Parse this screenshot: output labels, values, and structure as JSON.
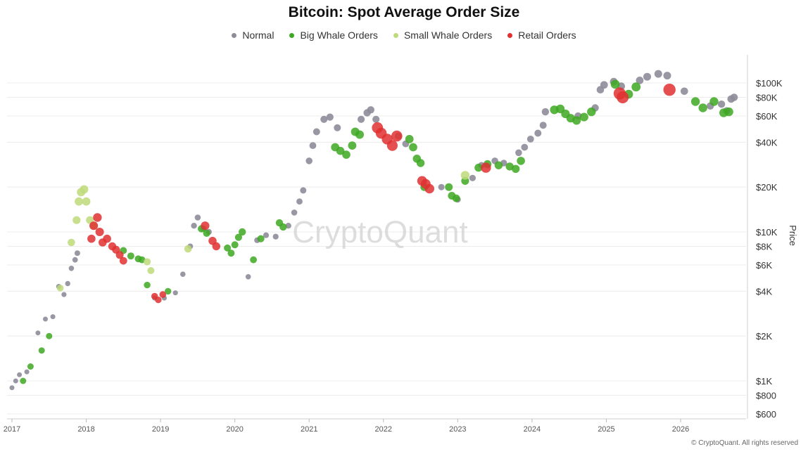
{
  "title": "Bitcoin: Spot Average Order Size",
  "watermark": "CryptoQuant",
  "credit": "© CryptoQuant. All rights reserved",
  "legend": [
    {
      "label": "Normal",
      "color": "#8e8c99"
    },
    {
      "label": "Big Whale Orders",
      "color": "#3ea822"
    },
    {
      "label": "Small Whale Orders",
      "color": "#bedb7a"
    },
    {
      "label": "Retail Orders",
      "color": "#e03030"
    }
  ],
  "chart_data": {
    "type": "scatter",
    "title": "Bitcoin: Spot Average Order Size",
    "xlabel": "",
    "ylabel": "Price",
    "y_scale": "log",
    "ylim": [
      600,
      160000
    ],
    "xlim": [
      2017.0,
      2026.95
    ],
    "grid": true,
    "legend_position": "top-center",
    "x_ticks": [
      "2017",
      "2018",
      "2019",
      "2020",
      "2021",
      "2022",
      "2023",
      "2024",
      "2025",
      "2026"
    ],
    "y_ticks": [
      {
        "value": 100000,
        "label": "$100K"
      },
      {
        "value": 80000,
        "label": "$80K"
      },
      {
        "value": 60000,
        "label": "$60K"
      },
      {
        "value": 40000,
        "label": "$40K"
      },
      {
        "value": 20000,
        "label": "$20K"
      },
      {
        "value": 10000,
        "label": "$10K"
      },
      {
        "value": 8000,
        "label": "$8K"
      },
      {
        "value": 6000,
        "label": "$6K"
      },
      {
        "value": 4000,
        "label": "$4K"
      },
      {
        "value": 2000,
        "label": "$2K"
      },
      {
        "value": 1000,
        "label": "$1K"
      },
      {
        "value": 800,
        "label": "$800"
      },
      {
        "value": 600,
        "label": "$600"
      }
    ],
    "series": [
      {
        "name": "Normal",
        "color": "#8e8c99",
        "points": [
          [
            2017.0,
            900
          ],
          [
            2017.05,
            1000
          ],
          [
            2017.1,
            1100
          ],
          [
            2017.2,
            1150
          ],
          [
            2017.35,
            2100
          ],
          [
            2017.45,
            2600
          ],
          [
            2017.55,
            2700
          ],
          [
            2017.63,
            4300
          ],
          [
            2017.7,
            3800
          ],
          [
            2017.75,
            4500
          ],
          [
            2017.8,
            5700
          ],
          [
            2017.85,
            6500
          ],
          [
            2017.88,
            7200
          ],
          [
            2018.92,
            3600
          ],
          [
            2019.05,
            3600
          ],
          [
            2019.2,
            3900
          ],
          [
            2019.3,
            5200
          ],
          [
            2019.4,
            8000
          ],
          [
            2019.45,
            11000
          ],
          [
            2019.5,
            12500
          ],
          [
            2019.58,
            10500
          ],
          [
            2019.65,
            10000
          ],
          [
            2020.18,
            5000
          ],
          [
            2020.3,
            8800
          ],
          [
            2020.42,
            9500
          ],
          [
            2020.55,
            9300
          ],
          [
            2020.72,
            11000
          ],
          [
            2020.8,
            13500
          ],
          [
            2020.87,
            16000
          ],
          [
            2020.92,
            19000
          ],
          [
            2021.0,
            30000
          ],
          [
            2021.05,
            38000
          ],
          [
            2021.1,
            47000
          ],
          [
            2021.2,
            57000
          ],
          [
            2021.28,
            59000
          ],
          [
            2021.38,
            50000
          ],
          [
            2021.7,
            57000
          ],
          [
            2021.78,
            63000
          ],
          [
            2021.83,
            66000
          ],
          [
            2021.9,
            57000
          ],
          [
            2022.2,
            44000
          ],
          [
            2022.3,
            39000
          ],
          [
            2022.78,
            20000
          ],
          [
            2023.0,
            16500
          ],
          [
            2023.2,
            23000
          ],
          [
            2023.32,
            28000
          ],
          [
            2023.5,
            30000
          ],
          [
            2023.62,
            29000
          ],
          [
            2023.82,
            34000
          ],
          [
            2023.9,
            37000
          ],
          [
            2023.98,
            42000
          ],
          [
            2024.08,
            46000
          ],
          [
            2024.15,
            52000
          ],
          [
            2024.18,
            64000
          ],
          [
            2024.62,
            60000
          ],
          [
            2024.85,
            68000
          ],
          [
            2024.92,
            90000
          ],
          [
            2024.97,
            97000
          ],
          [
            2025.1,
            102000
          ],
          [
            2025.2,
            95000
          ],
          [
            2025.45,
            104000
          ],
          [
            2025.55,
            110000
          ],
          [
            2025.7,
            115000
          ],
          [
            2025.82,
            112000
          ],
          [
            2026.05,
            88000
          ],
          [
            2026.4,
            70000
          ],
          [
            2026.55,
            72000
          ],
          [
            2026.62,
            65000
          ],
          [
            2026.68,
            78000
          ],
          [
            2026.72,
            80000
          ]
        ]
      },
      {
        "name": "Big Whale Orders",
        "color": "#3ea822",
        "points": [
          [
            2017.15,
            1000
          ],
          [
            2017.25,
            1250
          ],
          [
            2017.4,
            1600
          ],
          [
            2017.5,
            2000
          ],
          [
            2018.5,
            7500
          ],
          [
            2018.6,
            6900
          ],
          [
            2018.7,
            6600
          ],
          [
            2018.75,
            6500
          ],
          [
            2018.82,
            4400
          ],
          [
            2019.1,
            4000
          ],
          [
            2019.55,
            10500
          ],
          [
            2019.62,
            9800
          ],
          [
            2019.9,
            7800
          ],
          [
            2019.95,
            7200
          ],
          [
            2020.0,
            8200
          ],
          [
            2020.05,
            9200
          ],
          [
            2020.1,
            10000
          ],
          [
            2020.25,
            6500
          ],
          [
            2020.35,
            9000
          ],
          [
            2020.6,
            11500
          ],
          [
            2020.65,
            10800
          ],
          [
            2021.35,
            37000
          ],
          [
            2021.42,
            35000
          ],
          [
            2021.5,
            33000
          ],
          [
            2021.58,
            38000
          ],
          [
            2021.62,
            47000
          ],
          [
            2021.68,
            45000
          ],
          [
            2022.35,
            42000
          ],
          [
            2022.4,
            37000
          ],
          [
            2022.45,
            31000
          ],
          [
            2022.5,
            29000
          ],
          [
            2022.55,
            20000
          ],
          [
            2022.88,
            20000
          ],
          [
            2022.92,
            17500
          ],
          [
            2022.98,
            16800
          ],
          [
            2023.1,
            22000
          ],
          [
            2023.28,
            27000
          ],
          [
            2023.4,
            28500
          ],
          [
            2023.55,
            28000
          ],
          [
            2023.7,
            27500
          ],
          [
            2023.78,
            26500
          ],
          [
            2023.85,
            30000
          ],
          [
            2024.3,
            66000
          ],
          [
            2024.38,
            67000
          ],
          [
            2024.45,
            62000
          ],
          [
            2024.52,
            58000
          ],
          [
            2024.6,
            56000
          ],
          [
            2024.7,
            59000
          ],
          [
            2024.8,
            64000
          ],
          [
            2025.12,
            98000
          ],
          [
            2025.3,
            84000
          ],
          [
            2025.4,
            94000
          ],
          [
            2026.2,
            75000
          ],
          [
            2026.3,
            68000
          ],
          [
            2026.45,
            75000
          ],
          [
            2026.58,
            63000
          ],
          [
            2026.65,
            64000
          ]
        ]
      },
      {
        "name": "Small Whale Orders",
        "color": "#bedb7a",
        "points": [
          [
            2017.65,
            4200
          ],
          [
            2017.8,
            8500
          ],
          [
            2017.87,
            12000
          ],
          [
            2017.9,
            16000
          ],
          [
            2017.93,
            18500
          ],
          [
            2017.97,
            19300
          ],
          [
            2018.0,
            16000
          ],
          [
            2018.05,
            12000
          ],
          [
            2018.1,
            11000
          ],
          [
            2018.82,
            6300
          ],
          [
            2018.87,
            5500
          ],
          [
            2019.37,
            7700
          ],
          [
            2023.1,
            24000
          ]
        ]
      },
      {
        "name": "Retail Orders",
        "color": "#e03030",
        "points": [
          [
            2018.07,
            9000
          ],
          [
            2018.1,
            11000
          ],
          [
            2018.15,
            12500
          ],
          [
            2018.18,
            10000
          ],
          [
            2018.22,
            8500
          ],
          [
            2018.28,
            9000
          ],
          [
            2018.35,
            8000
          ],
          [
            2018.4,
            7600
          ],
          [
            2018.45,
            7000
          ],
          [
            2018.5,
            6400
          ],
          [
            2018.92,
            3700
          ],
          [
            2018.97,
            3500
          ],
          [
            2019.03,
            3800
          ],
          [
            2019.6,
            11000
          ],
          [
            2019.7,
            8700
          ],
          [
            2019.75,
            8000
          ],
          [
            2021.92,
            50000
          ],
          [
            2021.97,
            46000
          ],
          [
            2022.05,
            42000
          ],
          [
            2022.12,
            38000
          ],
          [
            2022.18,
            44000
          ],
          [
            2022.52,
            22000
          ],
          [
            2022.57,
            21000
          ],
          [
            2022.62,
            19500
          ],
          [
            2023.38,
            27000
          ],
          [
            2025.18,
            85000
          ],
          [
            2025.22,
            80000
          ],
          [
            2025.85,
            90000
          ]
        ]
      }
    ]
  }
}
